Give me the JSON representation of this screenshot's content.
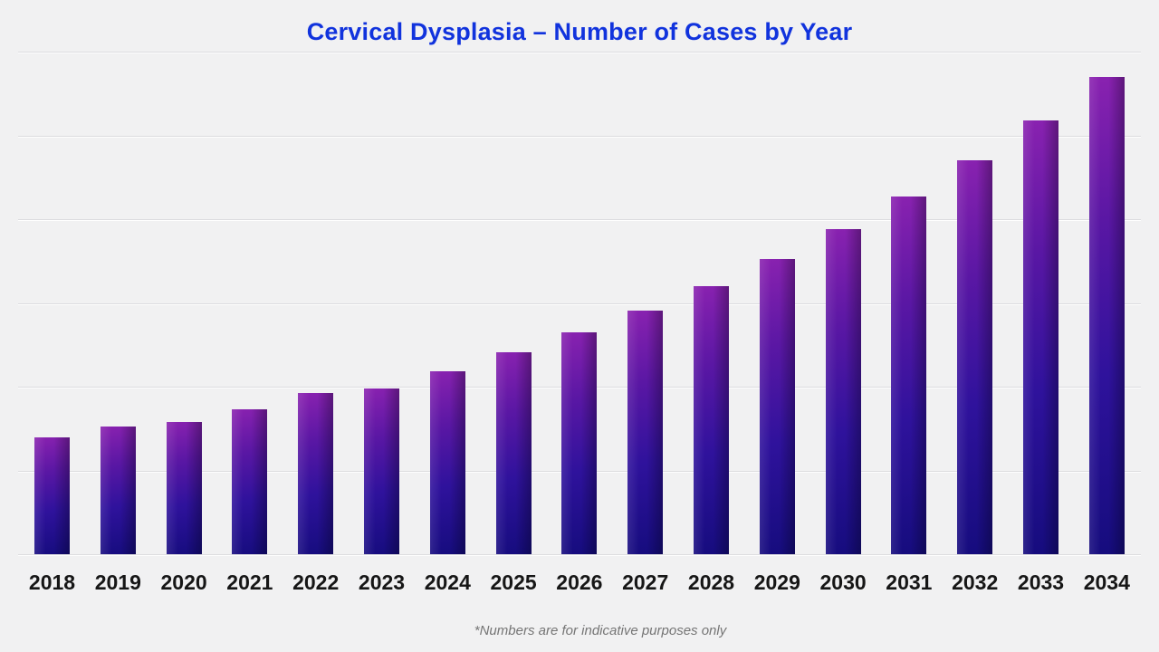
{
  "page": {
    "background_color": "#f1f1f2",
    "gridline_color": "#dcdcdf"
  },
  "header": {
    "title": "Cervical Dysplasia – Number of Cases by Year",
    "title_color": "#1133dd"
  },
  "footer": {
    "note": "*Numbers are for indicative purposes only",
    "note_color": "#757575"
  },
  "chart_data": {
    "type": "bar",
    "title": "Cervical Dysplasia – Number of Cases by Year",
    "xlabel": "",
    "ylabel": "",
    "categories": [
      "2018",
      "2019",
      "2020",
      "2021",
      "2022",
      "2023",
      "2024",
      "2025",
      "2026",
      "2027",
      "2028",
      "2029",
      "2030",
      "2031",
      "2032",
      "2033",
      "2034"
    ],
    "values": [
      139,
      152,
      158,
      173,
      192,
      198,
      218,
      241,
      265,
      291,
      320,
      352,
      388,
      427,
      470,
      518,
      570
    ],
    "values_note": "estimated from unlabeled gridlines; 100 units per gridline interval",
    "ylim": [
      0,
      600
    ],
    "gridline_step": 100,
    "grid": true,
    "y_axis_tick_labels_visible": false,
    "legend_position": "none",
    "footnote": "*Numbers are for indicative purposes only",
    "bar_color_top": "#8a22b0",
    "bar_color_mid": "#2f129c",
    "bar_color_bottom": "#150c7d",
    "xtick_color": "#161616"
  }
}
